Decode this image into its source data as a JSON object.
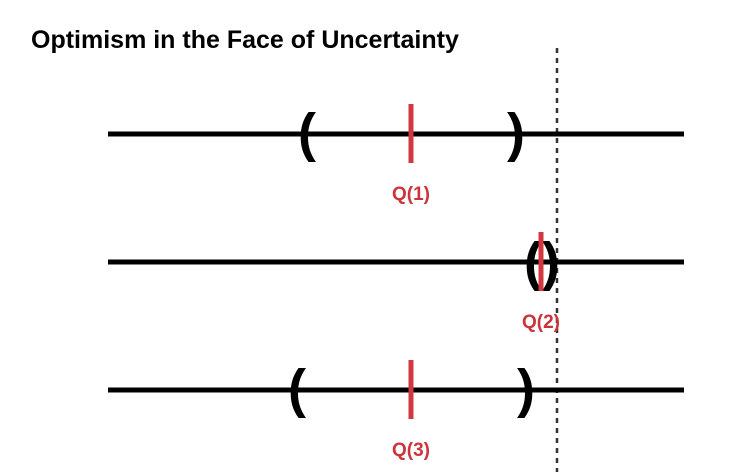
{
  "title": "Optimism in the Face of Uncertainty",
  "colors": {
    "axis": "#000000",
    "estimate": "#d0393f",
    "label": "#c9353b",
    "threshold": "#333333"
  },
  "brackets": {
    "open": "(",
    "close": ")"
  },
  "arms": [
    {
      "label": "Q(1)"
    },
    {
      "label": "Q(2)"
    },
    {
      "label": "Q(3)"
    }
  ]
}
